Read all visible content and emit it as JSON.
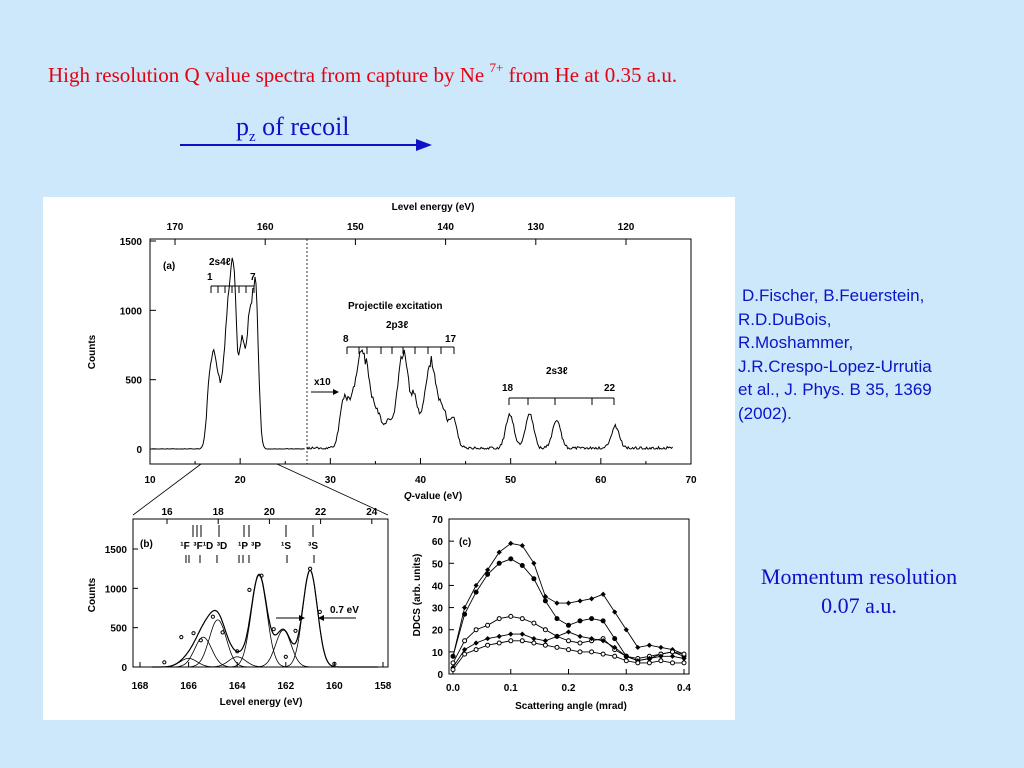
{
  "slide": {
    "title_main": "High resolution Q value spectra from capture by Ne",
    "title_sup": "7+",
    "title_tail": " from He at 0.35 a.u.",
    "pz_p": "p",
    "pz_sub": "z",
    "pz_rest": " of recoil",
    "citation_lines": [
      "D.Fischer, B.Feuerstein,",
      "R.D.DuBois,",
      "R.Moshammer,",
      "J.R.Crespo-Lopez-Urrutia",
      "et al., J. Phys. B  35, 1369",
      "(2002)."
    ],
    "momentum_line1": "Momentum resolution",
    "momentum_line2": "0.07 a.u.",
    "colors": {
      "title": "#e8000f",
      "pz": "#1010c8",
      "citation": "#0a14c8",
      "background": "#cce8fa"
    }
  },
  "figure": {
    "panel_a": {
      "label": "(a)",
      "top_axis_title": "Level energy (eV)",
      "top_ticks": [
        "170",
        "160",
        "150",
        "140",
        "130",
        "120"
      ],
      "ylabel": "Counts",
      "yticks": [
        "1500",
        "1000",
        "500",
        "0"
      ],
      "xlabel_italic": "Q",
      "xlabel_rest": "-value (eV)",
      "xticks": [
        "10",
        "20",
        "30",
        "40",
        "50",
        "60",
        "70"
      ],
      "group1": "2s4ℓ",
      "g1_start": "1",
      "g1_end": "7",
      "proj_exc": "Projectile excitation",
      "group2": "2p3ℓ",
      "g2_start": "8",
      "g2_end": "17",
      "group3": "2s3ℓ",
      "g3_start": "18",
      "g3_end": "22",
      "scale_label": "x10"
    },
    "panel_b": {
      "label": "(b)",
      "top_ticks": [
        "16",
        "18",
        "20",
        "22",
        "24"
      ],
      "ylabel": "Counts",
      "yticks": [
        "1500",
        "1000",
        "500",
        "0"
      ],
      "xticks": [
        "168",
        "166",
        "164",
        "162",
        "160",
        "158"
      ],
      "xlabel": "Level energy (eV)",
      "resolution": "0.7 eV",
      "terms": [
        "¹F",
        "³F",
        "¹D",
        "³D",
        "¹P",
        "³P",
        "¹S",
        "³S"
      ]
    },
    "panel_c": {
      "label": "(c)",
      "ylabel": "DDCS (arb. units)",
      "yticks": [
        "70",
        "60",
        "50",
        "40",
        "30",
        "20",
        "10",
        "0"
      ],
      "xticks": [
        "0.0",
        "0.1",
        "0.2",
        "0.3",
        "0.4"
      ],
      "xlabel": "Scattering angle (mrad)"
    }
  },
  "chart_data": [
    {
      "type": "line",
      "panel": "(a)",
      "xlabel": "Q-value (eV)",
      "ylabel": "Counts",
      "xlim": [
        10,
        70
      ],
      "ylim": [
        0,
        1700
      ],
      "secondary_x": {
        "label": "Level energy (eV)",
        "ticks": [
          170,
          160,
          150,
          140,
          130,
          120
        ]
      },
      "series": [
        {
          "x": [
            16.6,
            17.1,
            17.6,
            18.3,
            18.8,
            19.3,
            20.2,
            21.0,
            21.7
          ],
          "values": [
            420,
            470,
            350,
            530,
            720,
            1120,
            740,
            830,
            1150
          ]
        },
        {
          "scale": "x10",
          "x": [
            31.5,
            32.5,
            33.4,
            34.2,
            35.2,
            36.4,
            37.5,
            38.2,
            39.3,
            40.5,
            41.3,
            42.4,
            43.6,
            49.9,
            52.1,
            55.1,
            61.6
          ],
          "values": [
            35,
            30,
            58,
            40,
            25,
            18,
            29,
            58,
            35,
            28,
            56,
            28,
            22,
            24,
            25,
            21,
            16
          ]
        }
      ]
    },
    {
      "type": "line",
      "panel": "(b)",
      "xlabel": "Level energy (eV)",
      "ylabel": "Counts",
      "xlim": [
        168,
        158
      ],
      "ylim": [
        0,
        1700
      ],
      "secondary_x": {
        "ticks": [
          16,
          18,
          20,
          22,
          24
        ]
      },
      "series": [
        {
          "x": [
            167,
            166.3,
            165.8,
            165.5,
            165.0,
            164.6,
            164.0,
            163.5,
            163.0,
            162.5,
            162.0,
            161.6,
            161.0,
            160.6,
            160.0
          ],
          "values": [
            60,
            380,
            430,
            340,
            640,
            440,
            200,
            980,
            1160,
            480,
            130,
            460,
            1250,
            700,
            40
          ]
        }
      ]
    },
    {
      "type": "line",
      "panel": "(c)",
      "xlabel": "Scattering angle (mrad)",
      "ylabel": "DDCS (arb. units)",
      "xlim": [
        0,
        0.42
      ],
      "ylim": [
        0,
        70
      ],
      "x": [
        0.0,
        0.02,
        0.04,
        0.06,
        0.08,
        0.1,
        0.12,
        0.14,
        0.16,
        0.18,
        0.2,
        0.22,
        0.24,
        0.26,
        0.28,
        0.3,
        0.32,
        0.34,
        0.36,
        0.38,
        0.4
      ],
      "series": [
        {
          "values": [
            8,
            30,
            40,
            47,
            55,
            59,
            58,
            50,
            35,
            32,
            32,
            33,
            34,
            36,
            28,
            20,
            12,
            13,
            12,
            11,
            9
          ]
        },
        {
          "values": [
            8,
            27,
            37,
            45,
            50,
            52,
            49,
            43,
            33,
            25,
            22,
            24,
            25,
            24,
            16,
            8,
            6,
            7,
            9,
            10,
            8
          ]
        },
        {
          "values": [
            5,
            15,
            20,
            22,
            25,
            26,
            25,
            23,
            20,
            17,
            15,
            14,
            15,
            16,
            11,
            8,
            7,
            8,
            9,
            10,
            9
          ]
        },
        {
          "values": [
            3,
            11,
            14,
            16,
            17,
            18,
            18,
            16,
            15,
            17,
            19,
            17,
            16,
            15,
            12,
            8,
            6,
            7,
            8,
            8,
            7
          ]
        },
        {
          "values": [
            2,
            9,
            11,
            13,
            14,
            15,
            15,
            14,
            13,
            12,
            11,
            10,
            10,
            9,
            8,
            6,
            5,
            5,
            6,
            5,
            5
          ]
        }
      ]
    }
  ]
}
